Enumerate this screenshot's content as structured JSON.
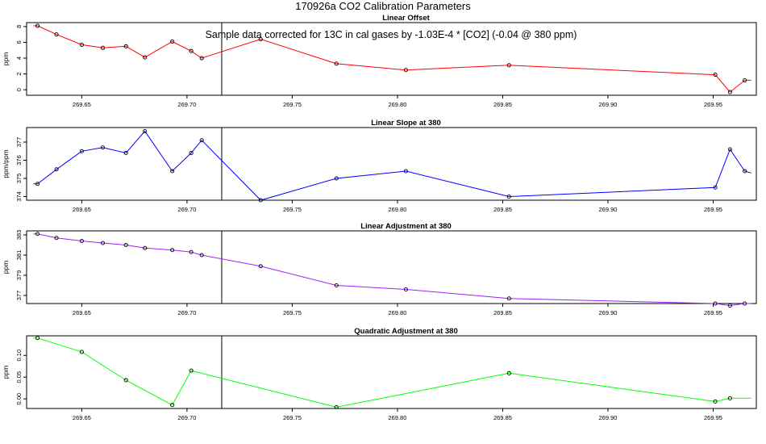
{
  "page": {
    "title": "170926a   CO2 Calibration Parameters",
    "note": "Sample data corrected for 13C in cal gases by -1.03E-4 * [CO2] (-0.04 @ 380 ppm)"
  },
  "chart_data": [
    {
      "type": "line",
      "title": "Linear Offset",
      "xlabel": "",
      "ylabel": "ppm",
      "xlim": [
        269.6238,
        269.9705
      ],
      "ylim": [
        -0.7,
        8.5
      ],
      "xticks": [
        "269.65",
        "269.70",
        "269.75",
        "269.80",
        "269.85",
        "269.90",
        "269.95"
      ],
      "yticks": [
        "0",
        "2",
        "4",
        "6",
        "8"
      ],
      "color": "#ff0000",
      "vline_x": 269.7165,
      "series": [
        {
          "x": [
            269.627,
            269.629,
            269.638,
            269.65,
            269.66,
            269.671,
            269.68,
            269.693,
            269.702,
            269.707,
            269.735,
            269.771,
            269.804,
            269.853,
            269.951,
            269.958,
            269.965,
            269.968
          ],
          "y": [
            8.1,
            8.1,
            7.0,
            5.7,
            5.3,
            5.5,
            4.1,
            6.1,
            4.9,
            4.0,
            6.4,
            3.3,
            2.5,
            3.1,
            1.9,
            -0.3,
            1.2,
            1.2
          ],
          "markers": [
            false,
            true,
            true,
            true,
            true,
            true,
            true,
            true,
            true,
            true,
            true,
            true,
            true,
            true,
            true,
            true,
            true,
            false
          ]
        }
      ]
    },
    {
      "type": "line",
      "title": "Linear Slope at 380",
      "xlabel": "",
      "ylabel": "ppm/ppm",
      "xlim": [
        269.6238,
        269.9705
      ],
      "ylim": [
        373.8,
        377.8
      ],
      "xticks": [
        "269.65",
        "269.70",
        "269.75",
        "269.80",
        "269.85",
        "269.90",
        "269.95"
      ],
      "yticks": [
        "374",
        "375",
        "376",
        "377"
      ],
      "color": "#0000ff",
      "vline_x": 269.7165,
      "series": [
        {
          "x": [
            269.627,
            269.629,
            269.638,
            269.65,
            269.66,
            269.671,
            269.68,
            269.693,
            269.702,
            269.707,
            269.735,
            269.771,
            269.804,
            269.853,
            269.951,
            269.958,
            269.965,
            269.968
          ],
          "y": [
            374.7,
            374.7,
            375.5,
            376.5,
            376.7,
            376.4,
            377.6,
            375.4,
            376.4,
            377.1,
            373.8,
            375.0,
            375.4,
            374.0,
            374.5,
            376.6,
            375.4,
            375.3
          ],
          "markers": [
            false,
            true,
            true,
            true,
            true,
            true,
            true,
            true,
            true,
            true,
            true,
            true,
            true,
            true,
            true,
            true,
            true,
            false
          ]
        }
      ]
    },
    {
      "type": "line",
      "title": "Linear Adjustment at 380",
      "xlabel": "",
      "ylabel": "ppm",
      "xlim": [
        269.6238,
        269.9705
      ],
      "ylim": [
        376.2,
        383.4
      ],
      "xticks": [
        "269.65",
        "269.70",
        "269.75",
        "269.80",
        "269.85",
        "269.90",
        "269.95"
      ],
      "yticks": [
        "377",
        "379",
        "381",
        "383"
      ],
      "color": "#a020f0",
      "vline_x": 269.7165,
      "series": [
        {
          "x": [
            269.627,
            269.629,
            269.638,
            269.65,
            269.66,
            269.671,
            269.68,
            269.693,
            269.702,
            269.707,
            269.735,
            269.771,
            269.804,
            269.853,
            269.951,
            269.958,
            269.965,
            269.968
          ],
          "y": [
            383.1,
            383.1,
            382.7,
            382.4,
            382.2,
            382.0,
            381.7,
            381.5,
            381.3,
            381.0,
            379.9,
            378.0,
            377.6,
            376.7,
            376.2,
            376.0,
            376.2,
            376.2
          ],
          "markers": [
            false,
            true,
            true,
            true,
            true,
            true,
            true,
            true,
            true,
            true,
            true,
            true,
            true,
            true,
            true,
            true,
            true,
            false
          ]
        }
      ]
    },
    {
      "type": "line",
      "title": "Quadratic Adjustment at 380",
      "xlabel": "",
      "ylabel": "ppm",
      "xlim": [
        269.6238,
        269.9705
      ],
      "ylim": [
        -0.022,
        0.145
      ],
      "xticks": [
        "269.65",
        "269.70",
        "269.75",
        "269.80",
        "269.85",
        "269.90",
        "269.95"
      ],
      "yticks": [
        "0.00",
        "0.05",
        "0.10"
      ],
      "color": "#00ff00",
      "vline_x": 269.7165,
      "series": [
        {
          "x": [
            269.627,
            269.629,
            269.65,
            269.671,
            269.693,
            269.702,
            269.771,
            269.853,
            269.951,
            269.958,
            269.968
          ],
          "y": [
            0.14,
            0.14,
            0.108,
            0.043,
            -0.014,
            0.065,
            -0.019,
            0.059,
            -0.006,
            0.0015,
            0.0015
          ],
          "markers": [
            false,
            true,
            true,
            true,
            true,
            true,
            true,
            true,
            true,
            true,
            false
          ]
        }
      ]
    }
  ]
}
